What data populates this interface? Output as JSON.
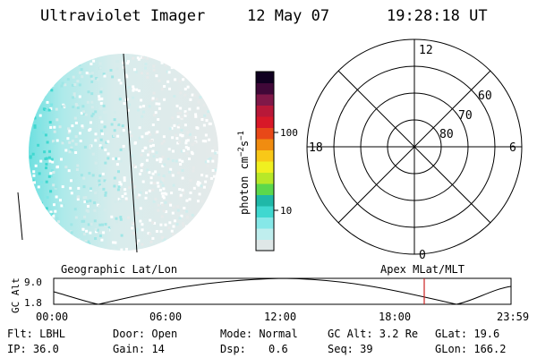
{
  "header": {
    "title": "Ultraviolet Imager",
    "date": "12 May 07",
    "time": "19:28:18 UT"
  },
  "colorbar": {
    "unit_label": "photon cm",
    "unit_exp1": "−2",
    "unit_mid": "s",
    "unit_exp2": "−1",
    "tick_100": "100",
    "tick_10": "10",
    "colors": [
      "#dfe7e7",
      "#bfeeee",
      "#86e8e8",
      "#3fd8d0",
      "#1fb8a8",
      "#5cd84c",
      "#b8e828",
      "#f0f020",
      "#f8c818",
      "#f08c10",
      "#e84818",
      "#d81828",
      "#b81838",
      "#801848",
      "#400838",
      "#100020"
    ]
  },
  "polar": {
    "label_top": "12",
    "label_bottom": "0",
    "label_left": "18",
    "label_right": "6",
    "lat_60": "60",
    "lat_70": "70",
    "lat_80": "80"
  },
  "timeline": {
    "left_label": "Geographic Lat/Lon",
    "right_label": "Apex  MLat/MLT",
    "axis_title": "GC Alt",
    "y_top": "9.0",
    "y_bottom": "1.8",
    "ticks": [
      "00:00",
      "06:00",
      "12:00",
      "18:00",
      "23:59"
    ],
    "marker_color": "#cc2222"
  },
  "info": {
    "flt": "Flt: LBHL",
    "ip": "IP: 36.0",
    "door": "Door: Open",
    "gain": "Gain: 14",
    "mode": "Mode: Normal",
    "dsp_label": "Dsp:",
    "dsp_value": "0.6",
    "gc_alt": "GC Alt: 3.2 Re",
    "seq": "Seq: 39",
    "glat": "GLat:  19.6",
    "glon": "GLon: 166.2"
  }
}
